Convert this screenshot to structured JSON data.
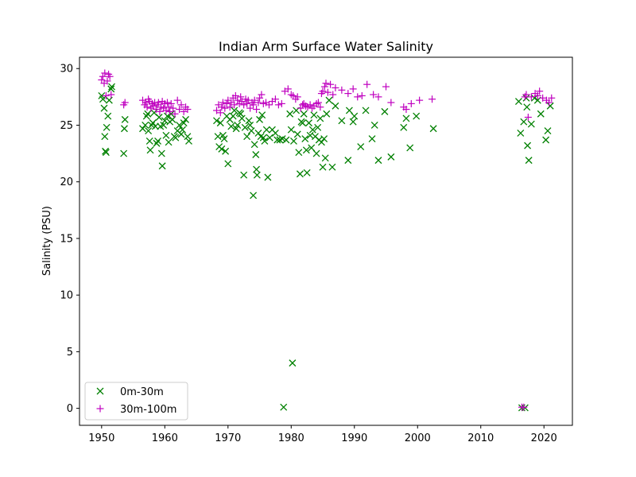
{
  "chart_data": {
    "type": "scatter",
    "title": "Indian Arm Surface Water Salinity",
    "xlabel": "",
    "ylabel": "Salinity (PSU)",
    "xlim": [
      1946.5,
      2024.5
    ],
    "ylim": [
      -1.5,
      31.0
    ],
    "xticks": [
      1950,
      1960,
      1970,
      1980,
      1990,
      2000,
      2010,
      2020
    ],
    "yticks": [
      0,
      5,
      10,
      15,
      20,
      25,
      30
    ],
    "grid": false,
    "legend_position": "lower-left",
    "series": [
      {
        "name": "0m-30m",
        "marker": "x",
        "color": "#008000",
        "points": [
          [
            1950.0,
            27.6
          ],
          [
            1950.2,
            27.3
          ],
          [
            1950.4,
            26.5
          ],
          [
            1950.5,
            24.0
          ],
          [
            1950.6,
            22.7
          ],
          [
            1950.7,
            22.6
          ],
          [
            1950.8,
            24.8
          ],
          [
            1951.0,
            25.8
          ],
          [
            1951.2,
            27.2
          ],
          [
            1951.5,
            28.2
          ],
          [
            1951.6,
            28.4
          ],
          [
            1953.5,
            22.5
          ],
          [
            1953.6,
            24.7
          ],
          [
            1953.7,
            25.5
          ],
          [
            1956.5,
            24.7
          ],
          [
            1956.9,
            25.0
          ],
          [
            1957.1,
            25.8
          ],
          [
            1957.3,
            26.0
          ],
          [
            1957.4,
            24.5
          ],
          [
            1957.6,
            23.6
          ],
          [
            1957.7,
            22.8
          ],
          [
            1957.9,
            25.0
          ],
          [
            1958.1,
            25.2
          ],
          [
            1958.3,
            26.1
          ],
          [
            1958.5,
            24.9
          ],
          [
            1958.7,
            23.4
          ],
          [
            1958.9,
            23.6
          ],
          [
            1959.1,
            25.7
          ],
          [
            1959.3,
            24.9
          ],
          [
            1959.5,
            22.5
          ],
          [
            1959.6,
            21.4
          ],
          [
            1959.8,
            25.0
          ],
          [
            1960.0,
            25.4
          ],
          [
            1960.2,
            24.1
          ],
          [
            1960.4,
            25.8
          ],
          [
            1960.6,
            23.5
          ],
          [
            1960.8,
            25.3
          ],
          [
            1961.0,
            26.0
          ],
          [
            1961.2,
            25.5
          ],
          [
            1961.5,
            24.0
          ],
          [
            1961.7,
            23.9
          ],
          [
            1962.0,
            24.5
          ],
          [
            1962.3,
            25.0
          ],
          [
            1962.6,
            24.2
          ],
          [
            1962.8,
            24.6
          ],
          [
            1963.0,
            25.2
          ],
          [
            1963.3,
            25.5
          ],
          [
            1963.6,
            24.0
          ],
          [
            1963.8,
            23.6
          ],
          [
            1968.2,
            25.4
          ],
          [
            1968.4,
            24.0
          ],
          [
            1968.6,
            23.1
          ],
          [
            1968.8,
            25.2
          ],
          [
            1969.0,
            22.9
          ],
          [
            1969.2,
            24.1
          ],
          [
            1969.4,
            23.8
          ],
          [
            1969.6,
            22.7
          ],
          [
            1969.8,
            25.8
          ],
          [
            1970.0,
            21.6
          ],
          [
            1970.3,
            25.5
          ],
          [
            1970.5,
            24.9
          ],
          [
            1970.8,
            25.8
          ],
          [
            1971.0,
            26.3
          ],
          [
            1971.3,
            24.7
          ],
          [
            1971.5,
            25.0
          ],
          [
            1971.8,
            26.1
          ],
          [
            1972.0,
            26.0
          ],
          [
            1972.2,
            25.6
          ],
          [
            1972.5,
            20.6
          ],
          [
            1972.7,
            24.8
          ],
          [
            1973.0,
            24.0
          ],
          [
            1973.3,
            25.4
          ],
          [
            1973.5,
            25.0
          ],
          [
            1973.7,
            24.5
          ],
          [
            1974.0,
            18.8
          ],
          [
            1974.2,
            23.3
          ],
          [
            1974.4,
            22.4
          ],
          [
            1974.5,
            21.1
          ],
          [
            1974.6,
            20.6
          ],
          [
            1974.8,
            24.3
          ],
          [
            1975.0,
            25.5
          ],
          [
            1975.2,
            24.0
          ],
          [
            1975.4,
            25.9
          ],
          [
            1975.6,
            23.9
          ],
          [
            1975.8,
            23.6
          ],
          [
            1976.1,
            24.6
          ],
          [
            1976.3,
            20.4
          ],
          [
            1976.6,
            23.9
          ],
          [
            1977.0,
            24.6
          ],
          [
            1977.5,
            24.3
          ],
          [
            1977.8,
            23.7
          ],
          [
            1978.2,
            23.7
          ],
          [
            1978.6,
            23.8
          ],
          [
            1978.8,
            0.1
          ],
          [
            1979.2,
            23.7
          ],
          [
            1979.8,
            26.0
          ],
          [
            1980.0,
            24.6
          ],
          [
            1980.2,
            4.0
          ],
          [
            1980.4,
            23.6
          ],
          [
            1980.8,
            26.3
          ],
          [
            1981.0,
            24.2
          ],
          [
            1981.2,
            22.6
          ],
          [
            1981.4,
            20.7
          ],
          [
            1981.6,
            25.3
          ],
          [
            1981.8,
            25.2
          ],
          [
            1982.0,
            26.0
          ],
          [
            1982.2,
            23.8
          ],
          [
            1982.4,
            22.8
          ],
          [
            1982.5,
            20.8
          ],
          [
            1982.8,
            25.2
          ],
          [
            1983.0,
            24.1
          ],
          [
            1983.2,
            23.0
          ],
          [
            1983.4,
            24.6
          ],
          [
            1983.6,
            25.9
          ],
          [
            1983.8,
            24.0
          ],
          [
            1984.0,
            22.5
          ],
          [
            1984.2,
            24.8
          ],
          [
            1984.4,
            23.7
          ],
          [
            1984.6,
            25.6
          ],
          [
            1984.8,
            23.5
          ],
          [
            1985.0,
            21.3
          ],
          [
            1985.2,
            23.8
          ],
          [
            1985.4,
            22.1
          ],
          [
            1985.6,
            26.0
          ],
          [
            1986.0,
            27.2
          ],
          [
            1986.5,
            21.3
          ],
          [
            1987.0,
            26.7
          ],
          [
            1988.0,
            25.4
          ],
          [
            1989.0,
            21.9
          ],
          [
            1989.2,
            26.3
          ],
          [
            1989.8,
            25.3
          ],
          [
            1990.0,
            25.8
          ],
          [
            1991.0,
            23.1
          ],
          [
            1991.8,
            26.3
          ],
          [
            1992.8,
            23.8
          ],
          [
            1993.2,
            25.0
          ],
          [
            1993.8,
            21.9
          ],
          [
            1994.8,
            26.2
          ],
          [
            1995.8,
            22.2
          ],
          [
            1997.8,
            24.8
          ],
          [
            1998.2,
            25.6
          ],
          [
            1998.8,
            23.0
          ],
          [
            1999.8,
            25.8
          ],
          [
            2002.5,
            24.7
          ],
          [
            2016.0,
            27.1
          ],
          [
            2016.3,
            24.3
          ],
          [
            2016.5,
            0.05
          ],
          [
            2016.8,
            25.3
          ],
          [
            2017.0,
            0.05
          ],
          [
            2017.2,
            27.4
          ],
          [
            2017.3,
            26.6
          ],
          [
            2017.4,
            23.2
          ],
          [
            2017.6,
            21.9
          ],
          [
            2018.0,
            25.1
          ],
          [
            2018.5,
            27.4
          ],
          [
            2019.0,
            27.2
          ],
          [
            2019.5,
            26.0
          ],
          [
            2020.3,
            23.7
          ],
          [
            2020.6,
            24.5
          ],
          [
            2021.0,
            26.7
          ]
        ]
      },
      {
        "name": "30m-100m",
        "marker": "+",
        "color": "#bf00bf",
        "points": [
          [
            1950.0,
            29.0
          ],
          [
            1950.2,
            29.3
          ],
          [
            1950.4,
            28.7
          ],
          [
            1950.5,
            29.6
          ],
          [
            1950.7,
            27.6
          ],
          [
            1950.9,
            28.9
          ],
          [
            1951.1,
            29.5
          ],
          [
            1951.3,
            29.3
          ],
          [
            1951.5,
            27.7
          ],
          [
            1953.5,
            26.8
          ],
          [
            1953.7,
            27.0
          ],
          [
            1956.5,
            27.2
          ],
          [
            1956.8,
            26.8
          ],
          [
            1957.0,
            27.0
          ],
          [
            1957.2,
            26.6
          ],
          [
            1957.4,
            27.3
          ],
          [
            1957.6,
            27.1
          ],
          [
            1957.8,
            26.5
          ],
          [
            1958.0,
            26.9
          ],
          [
            1958.2,
            26.7
          ],
          [
            1958.4,
            27.0
          ],
          [
            1958.6,
            26.4
          ],
          [
            1958.8,
            26.8
          ],
          [
            1959.0,
            27.0
          ],
          [
            1959.2,
            26.2
          ],
          [
            1959.4,
            26.6
          ],
          [
            1959.6,
            27.1
          ],
          [
            1959.8,
            26.5
          ],
          [
            1960.0,
            26.9
          ],
          [
            1960.2,
            26.3
          ],
          [
            1960.4,
            27.0
          ],
          [
            1960.6,
            26.6
          ],
          [
            1960.8,
            26.2
          ],
          [
            1961.0,
            26.9
          ],
          [
            1961.3,
            26.5
          ],
          [
            1961.6,
            26.0
          ],
          [
            1962.0,
            27.2
          ],
          [
            1962.3,
            26.4
          ],
          [
            1962.6,
            26.8
          ],
          [
            1963.0,
            26.2
          ],
          [
            1963.3,
            26.6
          ],
          [
            1963.6,
            26.4
          ],
          [
            1968.2,
            26.3
          ],
          [
            1968.5,
            26.8
          ],
          [
            1968.8,
            26.1
          ],
          [
            1969.0,
            26.6
          ],
          [
            1969.2,
            27.0
          ],
          [
            1969.5,
            26.5
          ],
          [
            1969.8,
            26.9
          ],
          [
            1970.0,
            27.2
          ],
          [
            1970.3,
            26.6
          ],
          [
            1970.5,
            27.0
          ],
          [
            1970.8,
            27.4
          ],
          [
            1971.0,
            26.8
          ],
          [
            1971.2,
            27.6
          ],
          [
            1971.5,
            27.2
          ],
          [
            1971.8,
            26.9
          ],
          [
            1972.0,
            27.5
          ],
          [
            1972.2,
            27.1
          ],
          [
            1972.5,
            26.8
          ],
          [
            1972.8,
            27.3
          ],
          [
            1973.0,
            26.9
          ],
          [
            1973.2,
            27.2
          ],
          [
            1973.5,
            26.5
          ],
          [
            1973.8,
            27.0
          ],
          [
            1974.0,
            26.8
          ],
          [
            1974.2,
            27.2
          ],
          [
            1974.5,
            26.4
          ],
          [
            1974.8,
            27.0
          ],
          [
            1975.0,
            27.4
          ],
          [
            1975.3,
            27.7
          ],
          [
            1975.6,
            26.9
          ],
          [
            1976.0,
            27.0
          ],
          [
            1976.5,
            26.8
          ],
          [
            1977.0,
            27.1
          ],
          [
            1977.5,
            27.3
          ],
          [
            1978.0,
            26.8
          ],
          [
            1978.5,
            26.9
          ],
          [
            1979.0,
            28.0
          ],
          [
            1979.5,
            28.2
          ],
          [
            1980.0,
            27.7
          ],
          [
            1980.3,
            27.6
          ],
          [
            1980.7,
            27.3
          ],
          [
            1981.0,
            27.5
          ],
          [
            1981.5,
            26.5
          ],
          [
            1981.8,
            26.8
          ],
          [
            1982.0,
            26.9
          ],
          [
            1982.3,
            26.7
          ],
          [
            1982.6,
            26.6
          ],
          [
            1983.0,
            26.8
          ],
          [
            1983.3,
            26.5
          ],
          [
            1983.6,
            26.7
          ],
          [
            1984.0,
            26.9
          ],
          [
            1984.3,
            27.0
          ],
          [
            1984.6,
            26.6
          ],
          [
            1984.8,
            27.8
          ],
          [
            1985.0,
            28.0
          ],
          [
            1985.3,
            28.4
          ],
          [
            1985.5,
            28.7
          ],
          [
            1985.8,
            27.9
          ],
          [
            1986.2,
            28.6
          ],
          [
            1986.6,
            27.7
          ],
          [
            1987.0,
            28.3
          ],
          [
            1988.0,
            28.1
          ],
          [
            1989.0,
            27.8
          ],
          [
            1989.8,
            28.2
          ],
          [
            1990.5,
            27.5
          ],
          [
            1991.2,
            27.6
          ],
          [
            1992.0,
            28.6
          ],
          [
            1993.0,
            27.7
          ],
          [
            1993.8,
            27.5
          ],
          [
            1995.0,
            28.4
          ],
          [
            1995.8,
            27.0
          ],
          [
            1997.8,
            26.6
          ],
          [
            1998.2,
            26.4
          ],
          [
            1999.0,
            26.9
          ],
          [
            2000.3,
            27.2
          ],
          [
            2002.3,
            27.3
          ],
          [
            2016.5,
            0.1
          ],
          [
            2016.8,
            0.1
          ],
          [
            2017.0,
            27.5
          ],
          [
            2017.2,
            27.7
          ],
          [
            2017.5,
            25.7
          ],
          [
            2018.0,
            27.5
          ],
          [
            2018.6,
            27.8
          ],
          [
            2019.0,
            27.6
          ],
          [
            2019.3,
            28.0
          ],
          [
            2019.8,
            27.4
          ],
          [
            2020.4,
            27.2
          ],
          [
            2020.8,
            27.0
          ],
          [
            2021.2,
            27.4
          ]
        ]
      }
    ]
  }
}
